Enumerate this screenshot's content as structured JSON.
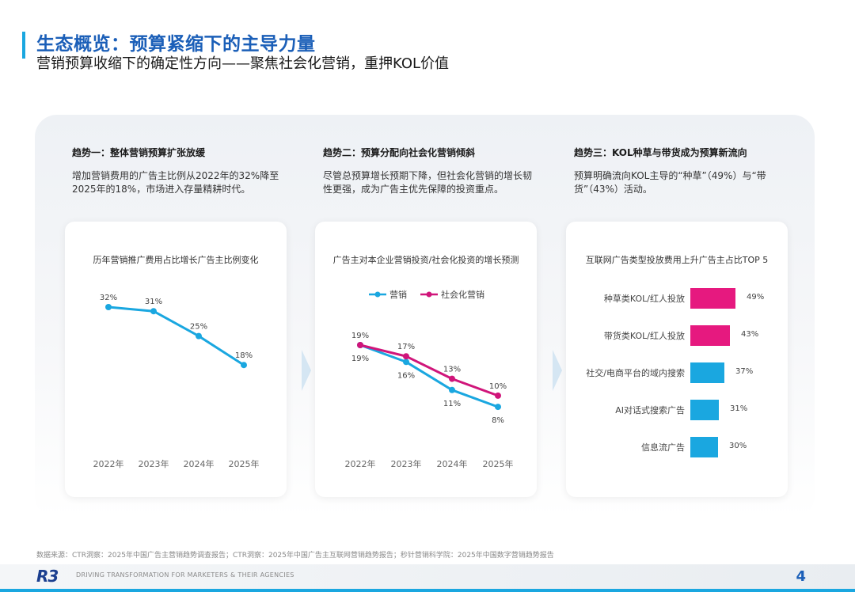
{
  "header": {
    "title": "生态概览：预算紧缩下的主导力量",
    "subtitle": "营销预算收缩下的确定性方向——聚焦社会化营销，重押KOL价值"
  },
  "trends": [
    {
      "heading": "趋势一：整体营销预算扩张放缓",
      "body": "增加营销费用的广告主比例从2022年的32%降至2025年的18%，市场进入存量精耕时代。"
    },
    {
      "heading": "趋势二：预算分配向社会化营销倾斜",
      "body": "尽管总预算增长预期下降，但社会化营销的增长韧性更强，成为广告主优先保障的投资重点。"
    },
    {
      "heading": "趋势三：KOL种草与带货成为预算新流向",
      "body": "预算明确流向KOL主导的“种草”（49%）与“带货”（43%）活动。"
    }
  ],
  "colors": {
    "accent": "#1aa7e0",
    "brand": "#1b5fb8",
    "magenta": "#e6197f"
  },
  "chart_data": [
    {
      "type": "line",
      "title": "历年营销推广费用占比增长广告主比例变化",
      "categories": [
        "2022年",
        "2023年",
        "2024年",
        "2025年"
      ],
      "series": [
        {
          "values": [
            32,
            31,
            25,
            18
          ],
          "labels": [
            "32%",
            "31%",
            "25%",
            "18%"
          ],
          "color": "#1aa7e0"
        }
      ],
      "ylim": [
        0,
        35
      ]
    },
    {
      "type": "line",
      "title": "广告主对本企业营销投资/社会化投资的增长预测",
      "categories": [
        "2022年",
        "2023年",
        "2024年",
        "2025年"
      ],
      "legend": "top",
      "series": [
        {
          "name": "营销",
          "values": [
            19,
            16,
            11,
            8
          ],
          "labels": [
            "19%",
            "16%",
            "11%",
            "8%"
          ],
          "color": "#1aa7e0"
        },
        {
          "name": "社会化营销",
          "values": [
            19,
            17,
            13,
            10
          ],
          "labels": [
            "19%",
            "17%",
            "13%",
            "10%"
          ],
          "color": "#d0157a"
        }
      ],
      "ylim": [
        0,
        22
      ]
    },
    {
      "type": "bar",
      "title": "互联网广告类型投放费用上升广告主占比TOP 5",
      "categories": [
        "种草类KOL/红人投放",
        "带货类KOL/红人投放",
        "社交/电商平台的域内搜索",
        "AI对话式搜索广告",
        "信息流广告"
      ],
      "values": [
        49,
        43,
        37,
        31,
        30
      ],
      "labels": [
        "49%",
        "43%",
        "37%",
        "31%",
        "30%"
      ],
      "colors": [
        "#e6197f",
        "#e6197f",
        "#1aa7e0",
        "#1aa7e0",
        "#1aa7e0"
      ]
    }
  ],
  "footer": {
    "source": "数据来源：CTR洞察：2025年中国广告主营销趋势调查报告；CTR洞察：2025年中国广告主互联网营销趋势报告；秒针营销科学院：2025年中国数字营销趋势报告",
    "logo": "R3",
    "tagline": "DRIVING TRANSFORMATION FOR MARKETERS & THEIR AGENCIES",
    "page": "4"
  }
}
